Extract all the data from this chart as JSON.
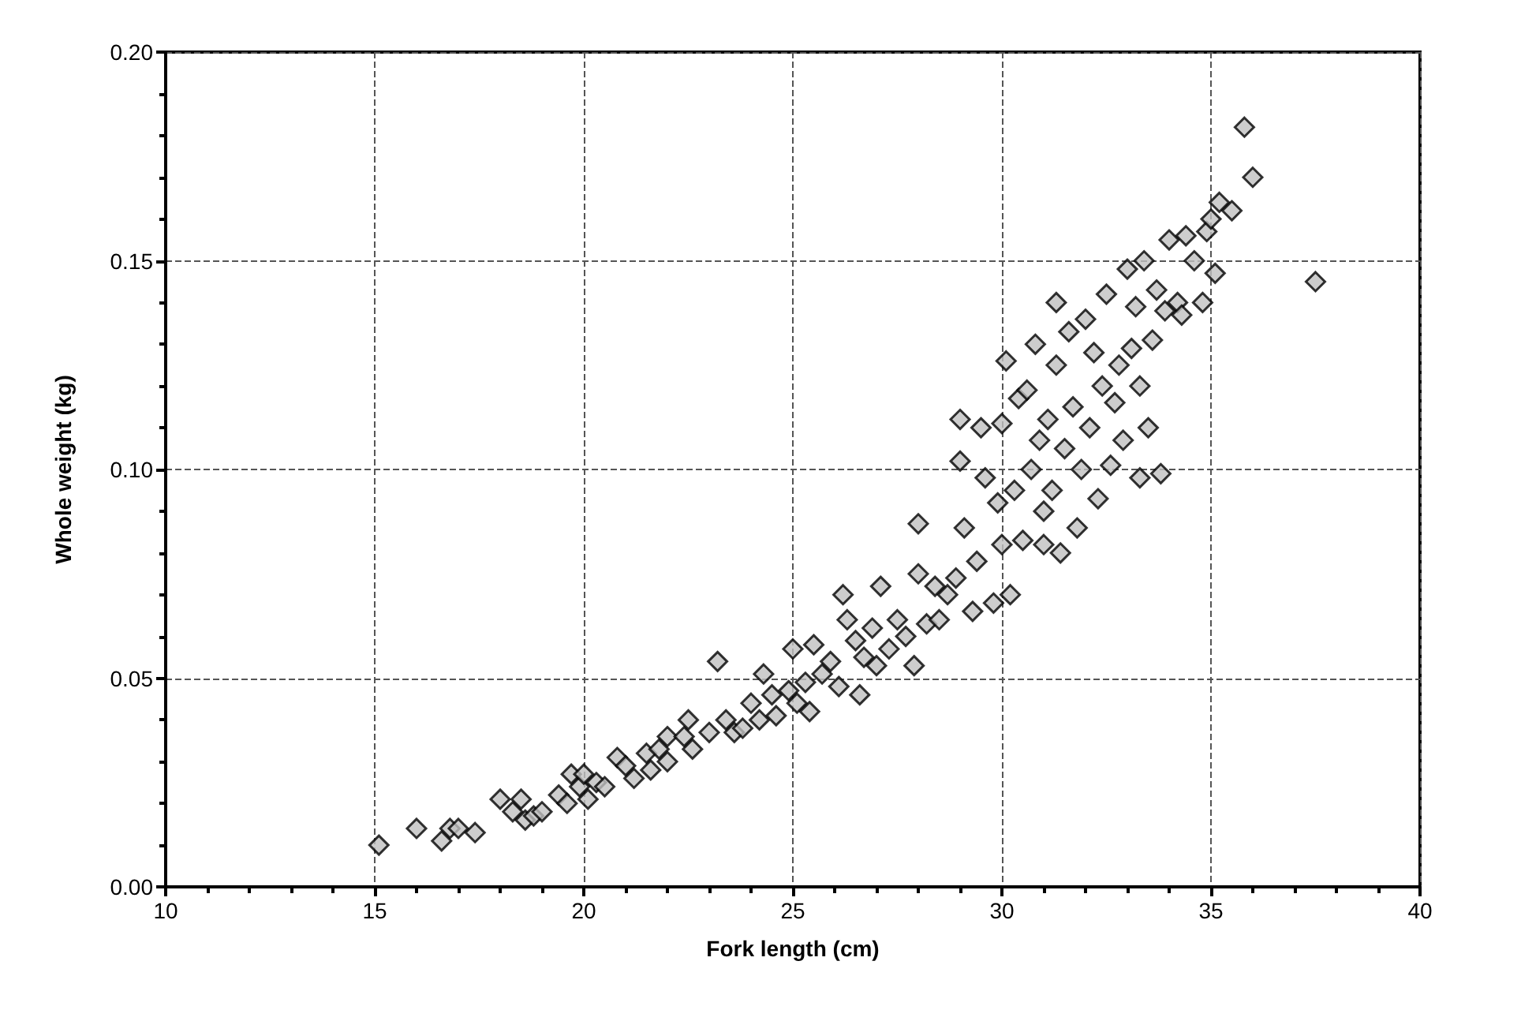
{
  "chart_data": {
    "type": "scatter",
    "xlabel": "Fork length (cm)",
    "ylabel": "Whole weight (kg)",
    "x": [
      15.1,
      16.0,
      16.6,
      16.8,
      17.0,
      17.4,
      18.0,
      18.3,
      18.5,
      18.6,
      18.8,
      19.0,
      19.4,
      19.6,
      19.7,
      19.9,
      20.0,
      20.1,
      20.3,
      20.5,
      20.8,
      21.0,
      21.2,
      21.5,
      21.6,
      21.8,
      22.0,
      22.0,
      22.4,
      22.5,
      22.6,
      23.0,
      23.2,
      23.4,
      23.6,
      23.8,
      24.0,
      24.2,
      24.3,
      24.5,
      24.6,
      24.9,
      25.0,
      25.1,
      25.3,
      25.4,
      25.5,
      25.7,
      25.9,
      26.1,
      26.2,
      26.3,
      26.5,
      26.6,
      26.7,
      26.9,
      27.0,
      27.1,
      27.3,
      27.5,
      27.7,
      27.9,
      28.0,
      28.0,
      28.2,
      28.4,
      28.5,
      28.7,
      28.9,
      29.0,
      29.0,
      29.1,
      29.3,
      29.4,
      29.5,
      29.6,
      29.8,
      29.9,
      30.0,
      30.0,
      30.1,
      30.2,
      30.3,
      30.4,
      30.5,
      30.6,
      30.7,
      30.8,
      30.9,
      31.0,
      31.0,
      31.1,
      31.2,
      31.3,
      31.3,
      31.4,
      31.5,
      31.6,
      31.7,
      31.8,
      31.9,
      32.0,
      32.1,
      32.2,
      32.3,
      32.4,
      32.5,
      32.6,
      32.7,
      32.8,
      32.9,
      33.0,
      33.1,
      33.2,
      33.3,
      33.3,
      33.4,
      33.5,
      33.6,
      33.7,
      33.8,
      33.9,
      34.0,
      34.2,
      34.3,
      34.4,
      34.6,
      34.8,
      34.9,
      35.0,
      35.1,
      35.2,
      35.5,
      35.8,
      36.0,
      37.5
    ],
    "values": [
      0.01,
      0.014,
      0.011,
      0.014,
      0.014,
      0.013,
      0.021,
      0.018,
      0.021,
      0.016,
      0.017,
      0.018,
      0.022,
      0.02,
      0.027,
      0.024,
      0.027,
      0.021,
      0.025,
      0.024,
      0.031,
      0.029,
      0.026,
      0.032,
      0.028,
      0.033,
      0.036,
      0.03,
      0.036,
      0.04,
      0.033,
      0.037,
      0.054,
      0.04,
      0.037,
      0.038,
      0.044,
      0.04,
      0.051,
      0.046,
      0.041,
      0.047,
      0.057,
      0.044,
      0.049,
      0.042,
      0.058,
      0.051,
      0.054,
      0.048,
      0.07,
      0.064,
      0.059,
      0.046,
      0.055,
      0.062,
      0.053,
      0.072,
      0.057,
      0.064,
      0.06,
      0.053,
      0.075,
      0.087,
      0.063,
      0.072,
      0.064,
      0.07,
      0.074,
      0.112,
      0.102,
      0.086,
      0.066,
      0.078,
      0.11,
      0.098,
      0.068,
      0.092,
      0.111,
      0.082,
      0.126,
      0.07,
      0.095,
      0.117,
      0.083,
      0.119,
      0.1,
      0.13,
      0.107,
      0.09,
      0.082,
      0.112,
      0.095,
      0.14,
      0.125,
      0.08,
      0.105,
      0.133,
      0.115,
      0.086,
      0.1,
      0.136,
      0.11,
      0.128,
      0.093,
      0.12,
      0.142,
      0.101,
      0.116,
      0.125,
      0.107,
      0.148,
      0.129,
      0.139,
      0.098,
      0.12,
      0.15,
      0.11,
      0.131,
      0.143,
      0.099,
      0.138,
      0.155,
      0.14,
      0.137,
      0.156,
      0.15,
      0.14,
      0.157,
      0.16,
      0.147,
      0.164,
      0.162,
      0.182,
      0.17,
      0.145
    ],
    "color": "#c0c0c0",
    "marker": "diamond",
    "grid": true,
    "xlim": [
      10,
      40
    ],
    "xticks": [
      10,
      15,
      20,
      25,
      30,
      35,
      40
    ],
    "ylim": [
      0,
      0.2
    ],
    "yticks": [
      {
        "value": 0,
        "label": "0.00"
      },
      {
        "value": 0.05,
        "label": "0.05"
      },
      {
        "value": 0.1,
        "label": "0.10"
      },
      {
        "value": 0.15,
        "label": "0.15"
      },
      {
        "value": 0.2,
        "label": "0.20"
      }
    ]
  }
}
